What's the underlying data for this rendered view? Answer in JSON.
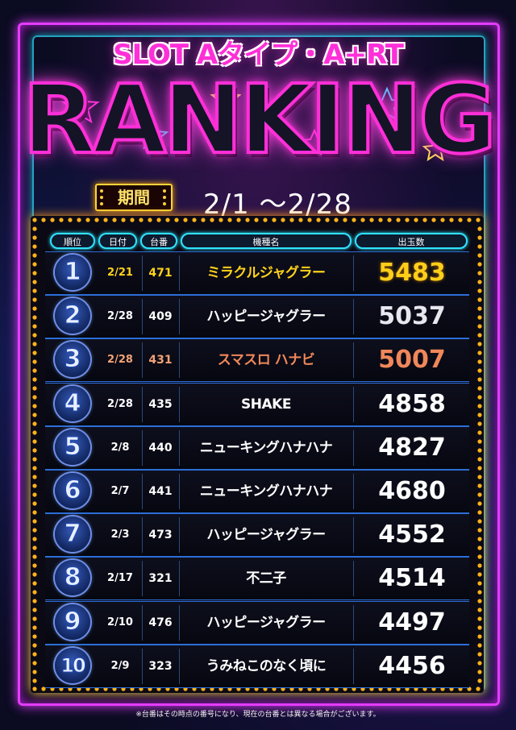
{
  "subtitle": "SLOT Aタイプ・A+RT",
  "title": "RANKING",
  "period": {
    "label": "期間",
    "range": "2/1 ～2/28"
  },
  "table": {
    "headers": {
      "rank": "順位",
      "date": "日付",
      "unit": "台番",
      "model": "機種名",
      "payout": "出玉数"
    },
    "rows": [
      {
        "rank": "1",
        "date": "2/21",
        "unit": "471",
        "model": "ミラクルジャグラー",
        "payout": "5483"
      },
      {
        "rank": "2",
        "date": "2/28",
        "unit": "409",
        "model": "ハッピージャグラー",
        "payout": "5037"
      },
      {
        "rank": "3",
        "date": "2/28",
        "unit": "431",
        "model": "スマスロ ハナビ",
        "payout": "5007"
      },
      {
        "rank": "4",
        "date": "2/28",
        "unit": "435",
        "model": "SHAKE",
        "payout": "4858"
      },
      {
        "rank": "5",
        "date": "2/8",
        "unit": "440",
        "model": "ニューキングハナハナ",
        "payout": "4827"
      },
      {
        "rank": "6",
        "date": "2/7",
        "unit": "441",
        "model": "ニューキングハナハナ",
        "payout": "4680"
      },
      {
        "rank": "7",
        "date": "2/3",
        "unit": "473",
        "model": "ハッピージャグラー",
        "payout": "4552"
      },
      {
        "rank": "8",
        "date": "2/17",
        "unit": "321",
        "model": "不二子",
        "payout": "4514"
      },
      {
        "rank": "9",
        "date": "2/10",
        "unit": "476",
        "model": "ハッピージャグラー",
        "payout": "4497"
      },
      {
        "rank": "10",
        "date": "2/9",
        "unit": "323",
        "model": "うみねこのなく頃に",
        "payout": "4456"
      }
    ]
  },
  "footnote": "※台番はその時点の番号になり、現在の台番とは異なる場合がございます。",
  "colors": {
    "pink_neon": "#ff2fd8",
    "cyan_neon": "#2fe2ff",
    "gold": "#ffce1a",
    "bronze": "#f0875a",
    "marquee_bulb": "#ffb21a"
  }
}
